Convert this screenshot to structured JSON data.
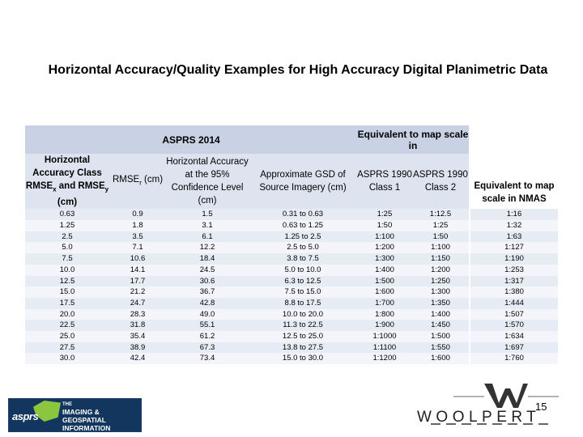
{
  "title": "Horizontal Accuracy/Quality Examples for High Accuracy Digital Planimetric Data",
  "table": {
    "band": {
      "asprs2014": "ASPRS 2014",
      "equivalent_map_scale": "Equivalent to map scale in"
    },
    "columns": {
      "horizontal_accuracy_class": "Horizontal Accuracy Class RMSEx and RMSEy (cm)",
      "rmser": "RMSEr (cm)",
      "horizontal_accuracy_95": "Horizontal Accuracy at the 95% Confidence Level (cm)",
      "approx_gsd": "Approximate GSD of Source Imagery (cm)",
      "asprs1990_class1": "ASPRS 1990 Class 1",
      "asprs1990_class2": "ASPRS 1990 Class 2",
      "nmas": "Equivalent to map scale in NMAS"
    },
    "rows": [
      [
        "0.63",
        "0.9",
        "1.5",
        "0.31 to 0.63",
        "1:25",
        "1:12.5",
        "1:16"
      ],
      [
        "1.25",
        "1.8",
        "3.1",
        "0.63 to 1.25",
        "1:50",
        "1:25",
        "1:32"
      ],
      [
        "2.5",
        "3.5",
        "6.1",
        "1.25 to 2.5",
        "1:100",
        "1:50",
        "1:63"
      ],
      [
        "5.0",
        "7.1",
        "12.2",
        "2.5 to 5.0",
        "1:200",
        "1:100",
        "1:127"
      ],
      [
        "7.5",
        "10.6",
        "18.4",
        "3.8 to 7.5",
        "1:300",
        "1:150",
        "1:190"
      ],
      [
        "10.0",
        "14.1",
        "24.5",
        "5.0 to 10.0",
        "1:400",
        "1:200",
        "1:253"
      ],
      [
        "12.5",
        "17.7",
        "30.6",
        "6.3 to 12.5",
        "1:500",
        "1:250",
        "1:317"
      ],
      [
        "15.0",
        "21.2",
        "36.7",
        "7.5 to 15.0",
        "1:600",
        "1:300",
        "1:380"
      ],
      [
        "17.5",
        "24.7",
        "42.8",
        "8.8 to 17.5",
        "1:700",
        "1:350",
        "1:444"
      ],
      [
        "20.0",
        "28.3",
        "49.0",
        "10.0 to 20.0",
        "1:800",
        "1:400",
        "1:507"
      ],
      [
        "22.5",
        "31.8",
        "55.1",
        "11.3 to 22.5",
        "1:900",
        "1:450",
        "1:570"
      ],
      [
        "25.0",
        "35.4",
        "61.2",
        "12.5 to 25.0",
        "1:1000",
        "1:500",
        "1:634"
      ],
      [
        "27.5",
        "38.9",
        "67.3",
        "13.8 to 27.5",
        "1:1100",
        "1:550",
        "1:697"
      ],
      [
        "30.0",
        "42.4",
        "73.4",
        "15.0 to 30.0",
        "1:1200",
        "1:600",
        "1:760"
      ]
    ]
  },
  "footer": {
    "page_number": "15",
    "asprs_logo": {
      "abbrev": "asprs",
      "line1": "THE",
      "line2": "IMAGING & GEOSPATIAL",
      "line3": "INFORMATION SOCIETY",
      "accent_color": "#8cc63f",
      "bg_color": "#13365f"
    },
    "woolpert_logo": {
      "text": "WOOLPERT"
    }
  }
}
